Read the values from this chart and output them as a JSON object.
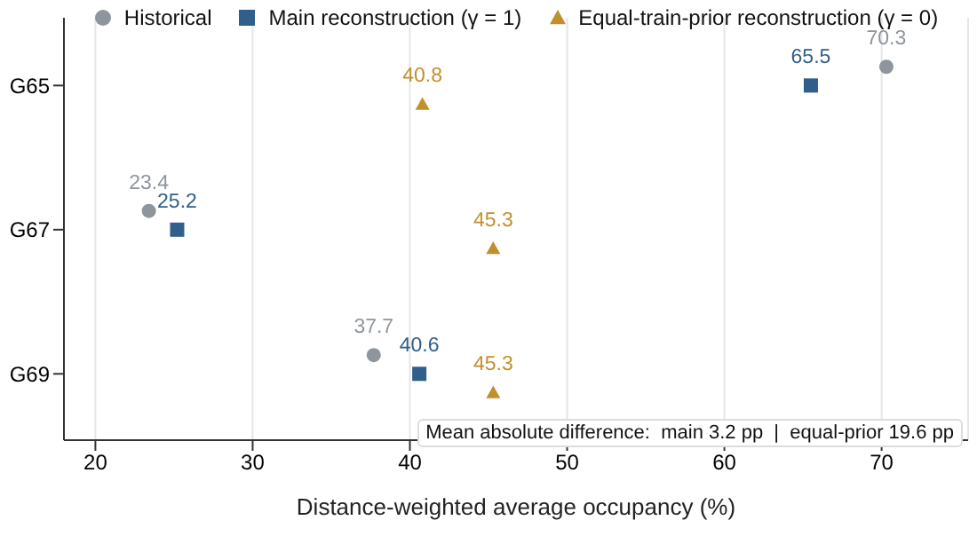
{
  "chart_data": {
    "type": "scatter",
    "orientation": "horizontal",
    "xlabel": "Distance-weighted average occupancy (%)",
    "categories": [
      "G65",
      "G67",
      "G69"
    ],
    "series": [
      {
        "name": "Historical",
        "color": "#8e959d",
        "marker": "circle",
        "values": [
          70.3,
          23.4,
          37.7
        ]
      },
      {
        "name": "Main reconstruction (γ = 1)",
        "color": "#2f5f8a",
        "marker": "square",
        "values": [
          65.5,
          25.2,
          40.6
        ]
      },
      {
        "name": "Equal-train-prior reconstruction (γ = 0)",
        "color": "#c1902c",
        "marker": "triangle",
        "values": [
          40.8,
          45.3,
          45.3
        ]
      }
    ],
    "xlim": [
      18,
      75.5
    ],
    "xticks": [
      20,
      30,
      40,
      50,
      60,
      70
    ],
    "grid": "x",
    "legend": "top",
    "data_labels": true,
    "annotations": [
      "Mean absolute difference:  main 3.2 pp  |  equal-prior 19.6 pp"
    ]
  }
}
